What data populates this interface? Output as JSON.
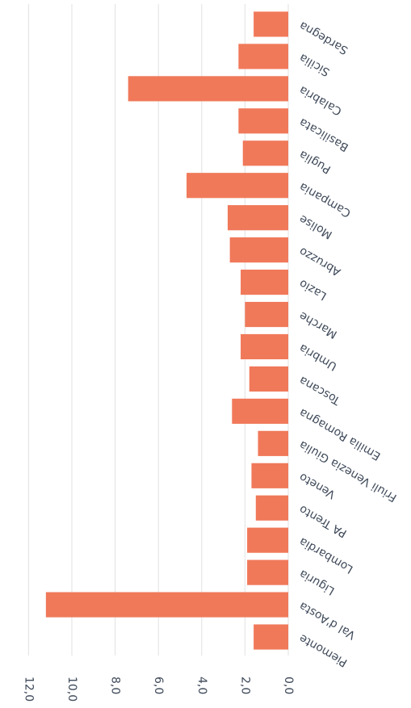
{
  "chart_data": {
    "type": "bar",
    "orientation": "horizontal",
    "categories": [
      "Piemonte",
      "Val d'Aosta",
      "Liguria",
      "Lombardia",
      "PA Trento",
      "Veneto",
      "Friuli Venezia Giulia",
      "Emilia Romagna",
      "Toscana",
      "Umbria",
      "Marche",
      "Lazio",
      "Abruzzo",
      "Molise",
      "Campania",
      "Puglia",
      "Basilicata",
      "Calabria",
      "Sicilia",
      "Sardegna"
    ],
    "values": [
      1.6,
      11.2,
      1.9,
      1.9,
      1.5,
      1.7,
      1.4,
      2.6,
      1.8,
      2.2,
      2.0,
      2.2,
      2.7,
      2.8,
      4.7,
      2.1,
      2.3,
      7.4,
      2.3,
      1.6
    ],
    "axis_ticks": [
      "0,0",
      "2,0",
      "4,0",
      "6,0",
      "8,0",
      "10,0",
      "12,0"
    ],
    "xlim": [
      0,
      12
    ],
    "grid": true,
    "legend": "none",
    "bar_color": "#f0795a",
    "grid_color": "#e2e2e2",
    "display_rotation": "upside-down"
  }
}
